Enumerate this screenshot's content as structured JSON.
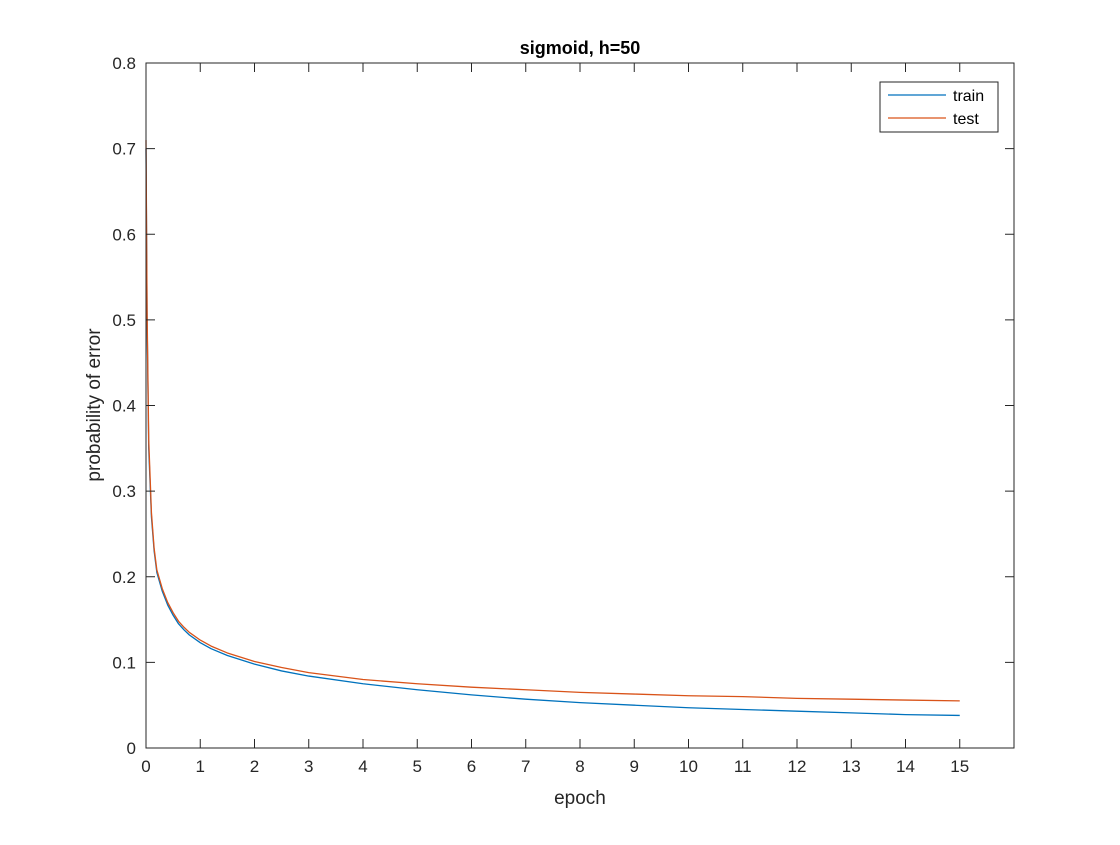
{
  "chart_data": {
    "type": "line",
    "title": "sigmoid, h=50",
    "xlabel": "epoch",
    "ylabel": "probability of error",
    "xlim": [
      0,
      16
    ],
    "ylim": [
      0,
      0.8
    ],
    "xticks": [
      0,
      1,
      2,
      3,
      4,
      5,
      6,
      7,
      8,
      9,
      10,
      11,
      12,
      13,
      14,
      15
    ],
    "yticks": [
      0,
      0.1,
      0.2,
      0.3,
      0.4,
      0.5,
      0.6,
      0.7,
      0.8
    ],
    "grid": false,
    "legend_position": "top-right",
    "series": [
      {
        "name": "train",
        "color": "#0072BD",
        "x": [
          0,
          0.02,
          0.05,
          0.1,
          0.15,
          0.2,
          0.3,
          0.4,
          0.5,
          0.6,
          0.7,
          0.8,
          1.0,
          1.2,
          1.5,
          2.0,
          2.5,
          3.0,
          4.0,
          5.0,
          6.0,
          7.0,
          8.0,
          9.0,
          10.0,
          11.0,
          12.0,
          13.0,
          14.0,
          15.0
        ],
        "y": [
          0.7,
          0.5,
          0.35,
          0.27,
          0.23,
          0.205,
          0.183,
          0.167,
          0.155,
          0.145,
          0.138,
          0.132,
          0.123,
          0.116,
          0.108,
          0.098,
          0.09,
          0.084,
          0.075,
          0.068,
          0.062,
          0.057,
          0.053,
          0.05,
          0.047,
          0.045,
          0.043,
          0.041,
          0.039,
          0.038
        ]
      },
      {
        "name": "test",
        "color": "#D95319",
        "x": [
          0,
          0.02,
          0.05,
          0.1,
          0.15,
          0.2,
          0.3,
          0.4,
          0.5,
          0.6,
          0.7,
          0.8,
          1.0,
          1.2,
          1.5,
          2.0,
          2.5,
          3.0,
          4.0,
          5.0,
          6.0,
          7.0,
          8.0,
          9.0,
          10.0,
          11.0,
          12.0,
          13.0,
          14.0,
          15.0
        ],
        "y": [
          0.71,
          0.51,
          0.36,
          0.275,
          0.233,
          0.208,
          0.186,
          0.17,
          0.158,
          0.148,
          0.141,
          0.135,
          0.126,
          0.119,
          0.111,
          0.101,
          0.094,
          0.088,
          0.08,
          0.075,
          0.071,
          0.068,
          0.065,
          0.063,
          0.061,
          0.06,
          0.058,
          0.057,
          0.056,
          0.055
        ]
      }
    ]
  }
}
